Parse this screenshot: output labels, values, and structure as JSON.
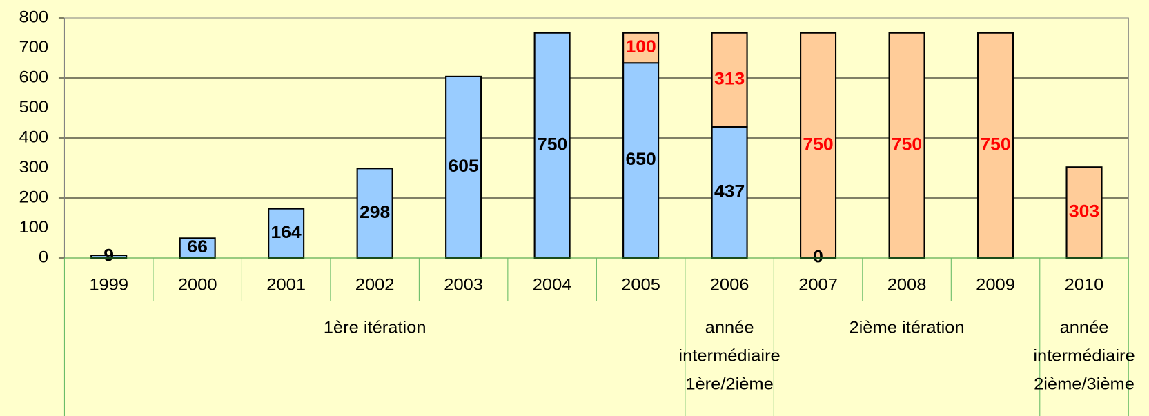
{
  "chart_data": {
    "type": "stacked_bar",
    "categories": [
      "1999",
      "2000",
      "2001",
      "2002",
      "2003",
      "2004",
      "2005",
      "2006",
      "2007",
      "2008",
      "2009",
      "2010"
    ],
    "series": [
      {
        "name": "1ère itération",
        "color": "#99CCFF",
        "label_color": "#000000",
        "values": [
          9,
          66,
          164,
          298,
          605,
          750,
          650,
          437,
          0,
          null,
          null,
          null
        ]
      },
      {
        "name": "2ième itération",
        "color": "#FFCC99",
        "label_color": "#FF0000",
        "values": [
          null,
          null,
          null,
          null,
          null,
          null,
          100,
          313,
          750,
          750,
          750,
          303
        ]
      }
    ],
    "groups": [
      {
        "lines": [
          "1ère itération"
        ],
        "span": 7
      },
      {
        "lines": [
          "année",
          "intermédiaire",
          "1ère/2ième"
        ],
        "span": 1
      },
      {
        "lines": [
          "2ième itération"
        ],
        "span": 3
      },
      {
        "lines": [
          "année",
          "intermédiaire",
          "2ième/3ième"
        ],
        "span": 1
      }
    ],
    "ylim": [
      0,
      800
    ],
    "yticks": [
      0,
      100,
      200,
      300,
      400,
      500,
      600,
      700,
      800
    ],
    "grid": true
  }
}
